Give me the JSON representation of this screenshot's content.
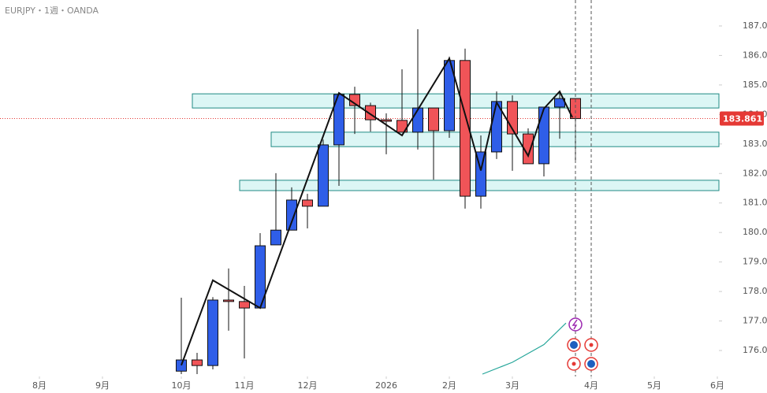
{
  "chart_data": {
    "type": "candlestick",
    "title": "EURJPY・1週・OANDA",
    "x": [
      0,
      1,
      2,
      3,
      4,
      5,
      6,
      7,
      8,
      9,
      10,
      11,
      12,
      13,
      14,
      15,
      16,
      17,
      18,
      19,
      20,
      21,
      22,
      23,
      24,
      25
    ],
    "open": [
      175.3,
      175.68,
      175.49,
      177.71,
      177.66,
      177.44,
      179.58,
      180.08,
      181.1,
      180.89,
      182.97,
      184.68,
      184.3,
      183.82,
      183.8,
      183.4,
      184.22,
      183.45,
      185.83,
      181.23,
      182.73,
      184.44,
      183.34,
      182.33,
      184.25,
      184.54
    ],
    "high": [
      177.79,
      175.92,
      177.81,
      178.78,
      178.19,
      179.98,
      182.01,
      181.53,
      181.31,
      183.15,
      184.73,
      184.94,
      184.4,
      184.04,
      185.53,
      186.89,
      184.22,
      185.96,
      186.23,
      183.29,
      184.78,
      184.65,
      183.53,
      184.25,
      184.78,
      184.54
    ],
    "low": [
      175.2,
      175.2,
      175.36,
      176.67,
      175.73,
      177.44,
      179.58,
      180.08,
      180.14,
      180.89,
      181.58,
      183.34,
      183.42,
      182.65,
      183.4,
      182.81,
      181.79,
      183.21,
      180.81,
      180.81,
      182.49,
      182.09,
      182.33,
      181.9,
      183.18,
      182.46
    ],
    "close": [
      175.68,
      175.49,
      177.71,
      177.66,
      177.44,
      179.55,
      180.08,
      181.1,
      180.89,
      182.97,
      184.68,
      184.3,
      183.82,
      183.77,
      183.4,
      184.22,
      183.45,
      185.83,
      181.23,
      182.73,
      184.44,
      183.34,
      182.33,
      184.25,
      184.54,
      183.861
    ],
    "up_color": "#2f5ee8",
    "down_color": "#f05458",
    "zigzag": {
      "x": [
        0,
        2,
        5,
        10,
        14,
        17,
        19,
        20,
        22,
        23,
        24,
        24.8
      ],
      "values": [
        175.5,
        178.38,
        177.44,
        184.73,
        183.29,
        185.9,
        182.1,
        184.41,
        182.6,
        184.2,
        184.78,
        183.9
      ],
      "color": "#111111"
    },
    "indicator": {
      "x": [
        19.1,
        21,
        23,
        24.4
      ],
      "values": [
        175.2,
        175.6,
        176.2,
        176.93
      ],
      "color": "#26a69a"
    },
    "zones": [
      {
        "x": 1,
        "y": [
          184.22,
          184.7
        ]
      },
      {
        "x": 6,
        "y": [
          182.91,
          183.4
        ]
      },
      {
        "x": 4,
        "y": [
          181.42,
          181.77
        ]
      }
    ],
    "last_price": {
      "value": 183.861,
      "label": "183.861"
    },
    "xlim": [
      -11.5,
      34.1
    ],
    "ylim": [
      175.12,
      187.88
    ],
    "xticks": [
      {
        "value": -9,
        "label": "8月"
      },
      {
        "value": -5,
        "label": "9月"
      },
      {
        "value": 0,
        "label": "10月"
      },
      {
        "value": 4,
        "label": "11月"
      },
      {
        "value": 8,
        "label": "12月"
      },
      {
        "value": 13,
        "label": "2026"
      },
      {
        "value": 17,
        "label": "2月"
      },
      {
        "value": 21,
        "label": "3月"
      },
      {
        "value": 26,
        "label": "4月"
      },
      {
        "value": 30,
        "label": "5月"
      },
      {
        "value": 34,
        "label": "6月"
      }
    ],
    "yticks": [
      {
        "value": 176,
        "label": "176.000"
      },
      {
        "value": 177,
        "label": "177.000"
      },
      {
        "value": 178,
        "label": "178.000"
      },
      {
        "value": 179,
        "label": "179.000"
      },
      {
        "value": 180,
        "label": "180.000"
      },
      {
        "value": 181,
        "label": "181.000"
      },
      {
        "value": 182,
        "label": "182.000"
      },
      {
        "value": 183,
        "label": "183.000"
      },
      {
        "value": 184,
        "label": "184.000"
      },
      {
        "value": 185,
        "label": "185.000"
      },
      {
        "value": 186,
        "label": "186.000"
      },
      {
        "value": 187,
        "label": "187.000"
      }
    ]
  }
}
